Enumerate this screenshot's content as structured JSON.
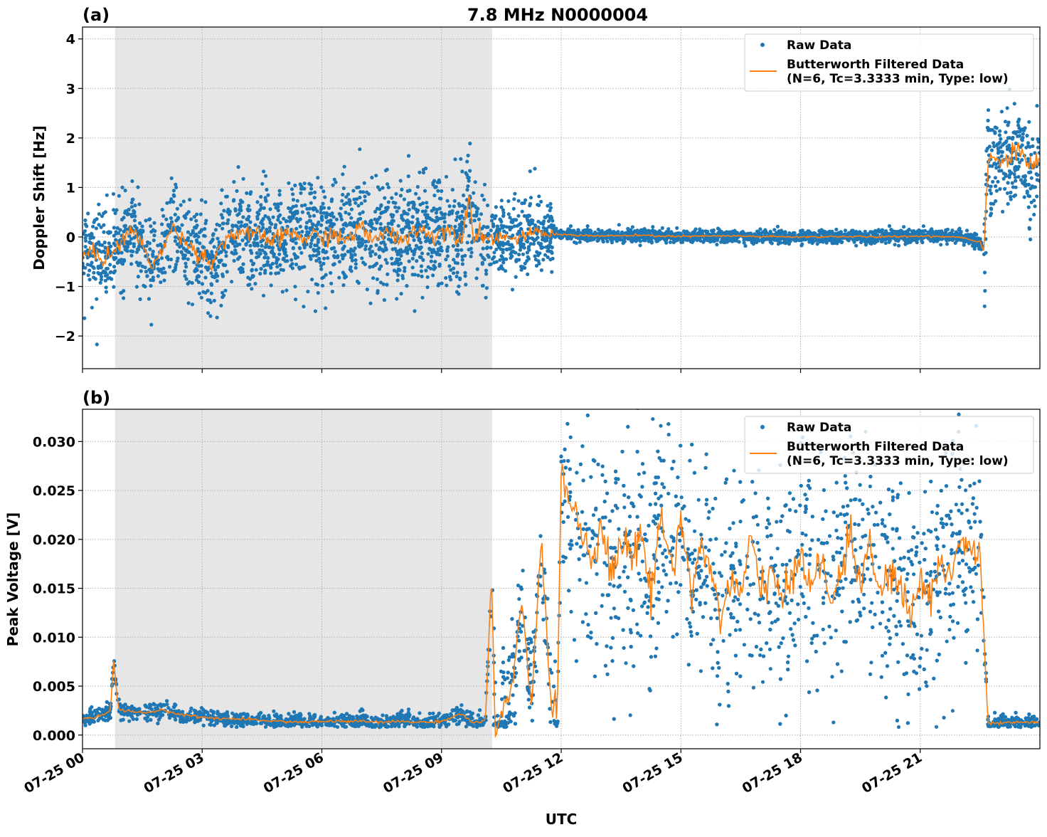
{
  "chart_data": [
    {
      "type": "scatter",
      "panel_label": "(a)",
      "title": "7.8 MHz N0000004",
      "xlabel": "",
      "ylabel": "Doppler Shift [Hz]",
      "xlim_hours": [
        0,
        24
      ],
      "ylim": [
        -2.66,
        4.24
      ],
      "yticks": [
        "−2",
        "−1",
        "0",
        "1",
        "2",
        "3",
        "4"
      ],
      "ytick_values": [
        -2,
        -1,
        0,
        1,
        2,
        3,
        4
      ],
      "grid": true,
      "shaded_interval_utc": [
        "07-25 00:49",
        "07-25 10:16"
      ],
      "legend_position": "top-right",
      "series": [
        {
          "name": "Raw Data",
          "kind": "scatter",
          "color": "#1f77b4",
          "spread_std_by_interval_hours": [
            [
              0,
              3.5,
              0.45
            ],
            [
              3.5,
              10.3,
              0.5
            ],
            [
              10.3,
              11.8,
              0.35
            ],
            [
              11.8,
              22.6,
              0.06
            ],
            [
              22.6,
              24,
              0.5
            ]
          ]
        },
        {
          "name": "Butterworth Filtered Data\n(N=6, Tc=3.3333 min, Type: low)",
          "kind": "line",
          "color": "#ff7f0e",
          "points_hours": [
            [
              0,
              -0.4
            ],
            [
              0.25,
              -0.3
            ],
            [
              0.5,
              -0.45
            ],
            [
              0.75,
              -0.3
            ],
            [
              1,
              -0.1
            ],
            [
              1.25,
              0.2
            ],
            [
              1.5,
              -0.2
            ],
            [
              1.75,
              -0.55
            ],
            [
              2,
              -0.3
            ],
            [
              2.25,
              0.2
            ],
            [
              2.5,
              0.0
            ],
            [
              2.75,
              -0.25
            ],
            [
              3,
              -0.35
            ],
            [
              3.25,
              -0.55
            ],
            [
              3.5,
              -0.1
            ],
            [
              3.75,
              0.05
            ],
            [
              4,
              0.1
            ],
            [
              4.25,
              0.0
            ],
            [
              4.5,
              0.05
            ],
            [
              4.75,
              -0.1
            ],
            [
              5,
              0.0
            ],
            [
              5.25,
              0.1
            ],
            [
              5.5,
              -0.05
            ],
            [
              5.75,
              0.05
            ],
            [
              6,
              -0.05
            ],
            [
              6.25,
              0.1
            ],
            [
              6.5,
              -0.1
            ],
            [
              6.75,
              0.05
            ],
            [
              7,
              0.2
            ],
            [
              7.25,
              -0.1
            ],
            [
              7.5,
              0.1
            ],
            [
              7.75,
              0.05
            ],
            [
              8,
              -0.05
            ],
            [
              8.25,
              0.1
            ],
            [
              8.5,
              0.15
            ],
            [
              8.75,
              0.0
            ],
            [
              9,
              0.15
            ],
            [
              9.25,
              0.1
            ],
            [
              9.5,
              0.0
            ],
            [
              9.7,
              0.85
            ],
            [
              9.8,
              0.05
            ],
            [
              10,
              0.05
            ],
            [
              10.25,
              -0.05
            ],
            [
              10.5,
              0.05
            ],
            [
              10.75,
              -0.05
            ],
            [
              11,
              0.0
            ],
            [
              11.25,
              0.05
            ],
            [
              11.5,
              0.1
            ],
            [
              11.75,
              0.05
            ],
            [
              12,
              0.05
            ],
            [
              13,
              0.02
            ],
            [
              14,
              0.03
            ],
            [
              15,
              0.01
            ],
            [
              16,
              0.02
            ],
            [
              17,
              0.01
            ],
            [
              18,
              0.0
            ],
            [
              19,
              0.01
            ],
            [
              20,
              0.0
            ],
            [
              21,
              0.02
            ],
            [
              22,
              0.0
            ],
            [
              22.5,
              -0.1
            ],
            [
              22.6,
              -0.3
            ],
            [
              22.7,
              1.7
            ],
            [
              23,
              1.5
            ],
            [
              23.25,
              1.6
            ],
            [
              23.5,
              1.8
            ],
            [
              23.75,
              1.4
            ],
            [
              24,
              1.5
            ]
          ]
        }
      ]
    },
    {
      "type": "scatter",
      "panel_label": "(b)",
      "xlabel": "UTC",
      "ylabel": "Peak Voltage [V]",
      "xlim_hours": [
        0,
        24
      ],
      "ylim": [
        -0.0014,
        0.0333
      ],
      "yticks": [
        "0.000",
        "0.005",
        "0.010",
        "0.015",
        "0.020",
        "0.025",
        "0.030"
      ],
      "ytick_values": [
        0,
        0.005,
        0.01,
        0.015,
        0.02,
        0.025,
        0.03
      ],
      "xticks": [
        "07-25 00",
        "07-25 03",
        "07-25 06",
        "07-25 09",
        "07-25 12",
        "07-25 15",
        "07-25 18",
        "07-25 21"
      ],
      "xtick_hours": [
        0,
        3,
        6,
        9,
        12,
        15,
        18,
        21
      ],
      "grid": true,
      "shaded_interval_utc": [
        "07-25 00:49",
        "07-25 10:16"
      ],
      "legend_position": "top-right",
      "series": [
        {
          "name": "Raw Data",
          "kind": "scatter",
          "color": "#1f77b4",
          "spread_std_by_interval_hours": [
            [
              0,
              10.2,
              0.0004
            ],
            [
              10.2,
              12,
              0.003
            ],
            [
              12,
              22.6,
              0.0055
            ],
            [
              22.6,
              24,
              0.0004
            ]
          ]
        },
        {
          "name": "Butterworth Filtered Data\n(N=6, Tc=3.3333 min, Type: low)",
          "kind": "line",
          "color": "#ff7f0e",
          "points_hours": [
            [
              0,
              0.0017
            ],
            [
              0.25,
              0.0018
            ],
            [
              0.5,
              0.002
            ],
            [
              0.7,
              0.0025
            ],
            [
              0.78,
              0.0076
            ],
            [
              0.9,
              0.0028
            ],
            [
              1,
              0.0025
            ],
            [
              1.5,
              0.0023
            ],
            [
              2,
              0.0025
            ],
            [
              2.5,
              0.0021
            ],
            [
              3,
              0.0018
            ],
            [
              3.5,
              0.0017
            ],
            [
              4,
              0.0016
            ],
            [
              4.5,
              0.0015
            ],
            [
              5,
              0.0014
            ],
            [
              5.5,
              0.0013
            ],
            [
              6,
              0.0014
            ],
            [
              6.5,
              0.0014
            ],
            [
              7,
              0.0014
            ],
            [
              7.5,
              0.0013
            ],
            [
              8,
              0.0014
            ],
            [
              8.5,
              0.0013
            ],
            [
              9,
              0.0014
            ],
            [
              9.5,
              0.0022
            ],
            [
              9.75,
              0.0013
            ],
            [
              10.1,
              0.0014
            ],
            [
              10.25,
              0.016
            ],
            [
              10.35,
              0.0001
            ],
            [
              10.5,
              0.002
            ],
            [
              10.75,
              0.004
            ],
            [
              11,
              0.014
            ],
            [
              11.25,
              0.003
            ],
            [
              11.5,
              0.02
            ],
            [
              11.75,
              0.003
            ],
            [
              11.9,
              0.002
            ],
            [
              12,
              0.027
            ],
            [
              12.25,
              0.024
            ],
            [
              12.5,
              0.021
            ],
            [
              12.75,
              0.018
            ],
            [
              13,
              0.022
            ],
            [
              13.25,
              0.016
            ],
            [
              13.5,
              0.02
            ],
            [
              13.75,
              0.018
            ],
            [
              14,
              0.021
            ],
            [
              14.25,
              0.014
            ],
            [
              14.5,
              0.023
            ],
            [
              14.75,
              0.017
            ],
            [
              15,
              0.022
            ],
            [
              15.25,
              0.015
            ],
            [
              15.5,
              0.019
            ],
            [
              15.75,
              0.017
            ],
            [
              16,
              0.012
            ],
            [
              16.25,
              0.016
            ],
            [
              16.5,
              0.014
            ],
            [
              16.75,
              0.02
            ],
            [
              17,
              0.015
            ],
            [
              17.25,
              0.017
            ],
            [
              17.5,
              0.013
            ],
            [
              17.75,
              0.016
            ],
            [
              18,
              0.019
            ],
            [
              18.25,
              0.015
            ],
            [
              18.5,
              0.018
            ],
            [
              18.75,
              0.013
            ],
            [
              19,
              0.017
            ],
            [
              19.25,
              0.02
            ],
            [
              19.5,
              0.016
            ],
            [
              19.75,
              0.019
            ],
            [
              20,
              0.014
            ],
            [
              20.25,
              0.017
            ],
            [
              20.5,
              0.015
            ],
            [
              20.75,
              0.012
            ],
            [
              21,
              0.016
            ],
            [
              21.25,
              0.014
            ],
            [
              21.5,
              0.018
            ],
            [
              21.75,
              0.016
            ],
            [
              22,
              0.02
            ],
            [
              22.25,
              0.019
            ],
            [
              22.5,
              0.018
            ],
            [
              22.7,
              0.0012
            ],
            [
              23,
              0.0012
            ],
            [
              23.5,
              0.0013
            ],
            [
              24,
              0.0013
            ]
          ]
        }
      ]
    }
  ]
}
